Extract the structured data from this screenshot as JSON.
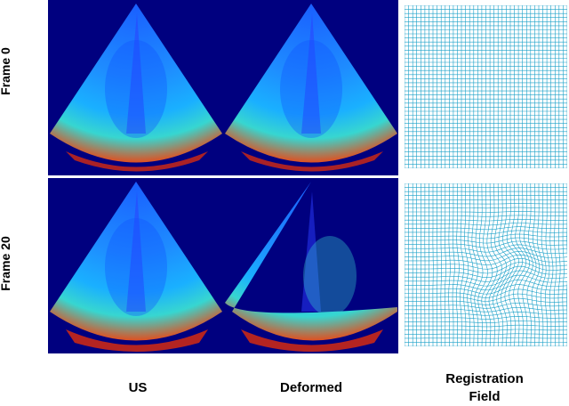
{
  "rows": [
    {
      "label": "Frame  0"
    },
    {
      "label": "Frame  20"
    }
  ],
  "columns": [
    {
      "label": "US"
    },
    {
      "label": "Deformed"
    },
    {
      "label_line1": "Registration",
      "label_line2": "Field"
    }
  ],
  "colors": {
    "background": "#00007f",
    "grid_line": "#1aa0c8"
  }
}
